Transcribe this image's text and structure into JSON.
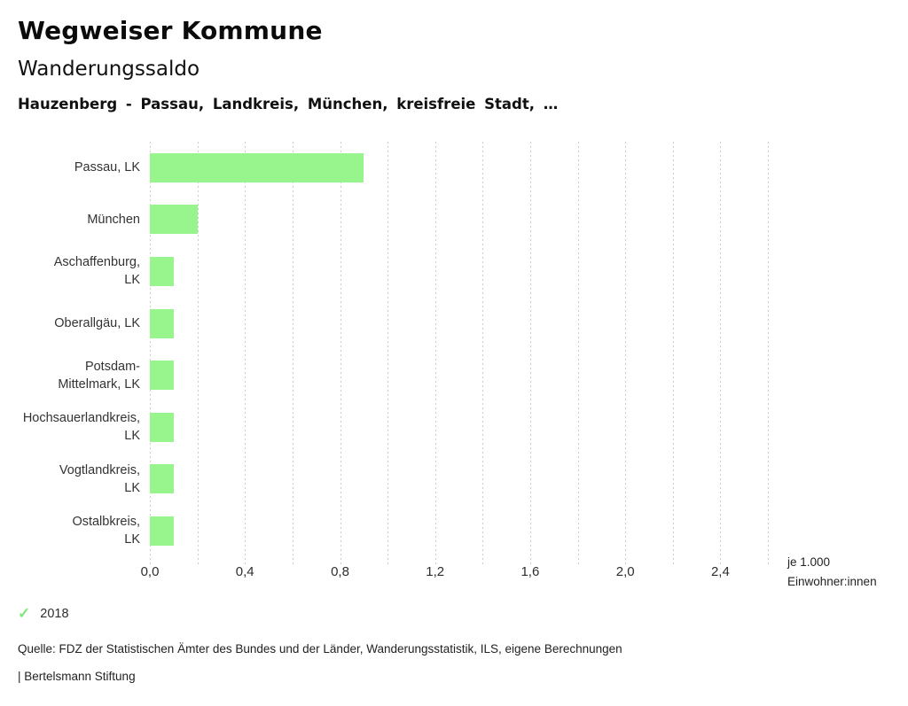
{
  "header": {
    "app_title": "Wegweiser Kommune",
    "chart_title": "Wanderungssaldo",
    "subtitle": "Hauzenberg - Passau, Landkreis, München, kreisfreie Stadt, …"
  },
  "chart_data": {
    "type": "bar",
    "orientation": "horizontal",
    "title": "Wanderungssaldo",
    "categories": [
      "Passau, LK",
      "München",
      "Aschaffenburg,\nLK",
      "Oberallgäu, LK",
      "Potsdam-\nMittelmark, LK",
      "Hochsauerlandkreis,\nLK",
      "Vogtlandkreis,\nLK",
      "Ostalbkreis,\nLK"
    ],
    "series": [
      {
        "name": "2018",
        "values": [
          0.9,
          0.2,
          0.1,
          0.1,
          0.1,
          0.1,
          0.1,
          0.1
        ]
      }
    ],
    "xlim": [
      0,
      2.6
    ],
    "x_minor_step": 0.2,
    "x_major_ticks": [
      0.0,
      0.4,
      0.8,
      1.2,
      1.6,
      2.0,
      2.4
    ],
    "x_tick_labels": [
      "0,0",
      "0,4",
      "0,8",
      "1,2",
      "1,6",
      "2,0",
      "2,4"
    ],
    "xlabel": "je 1.000\nEinwohner:innen",
    "ylabel": "",
    "grid": true,
    "grid_color": "#cccccc",
    "bar_color": "#98f58e",
    "legend_position": "bottom-left"
  },
  "legend": {
    "check_glyph": "✓",
    "check_color": "#7fe878",
    "label": "2018"
  },
  "footer": {
    "source": "Quelle: FDZ der Statistischen Ämter des Bundes und der Länder, Wanderungsstatistik, ILS, eigene Berechnungen",
    "attribution": "| Bertelsmann Stiftung"
  }
}
